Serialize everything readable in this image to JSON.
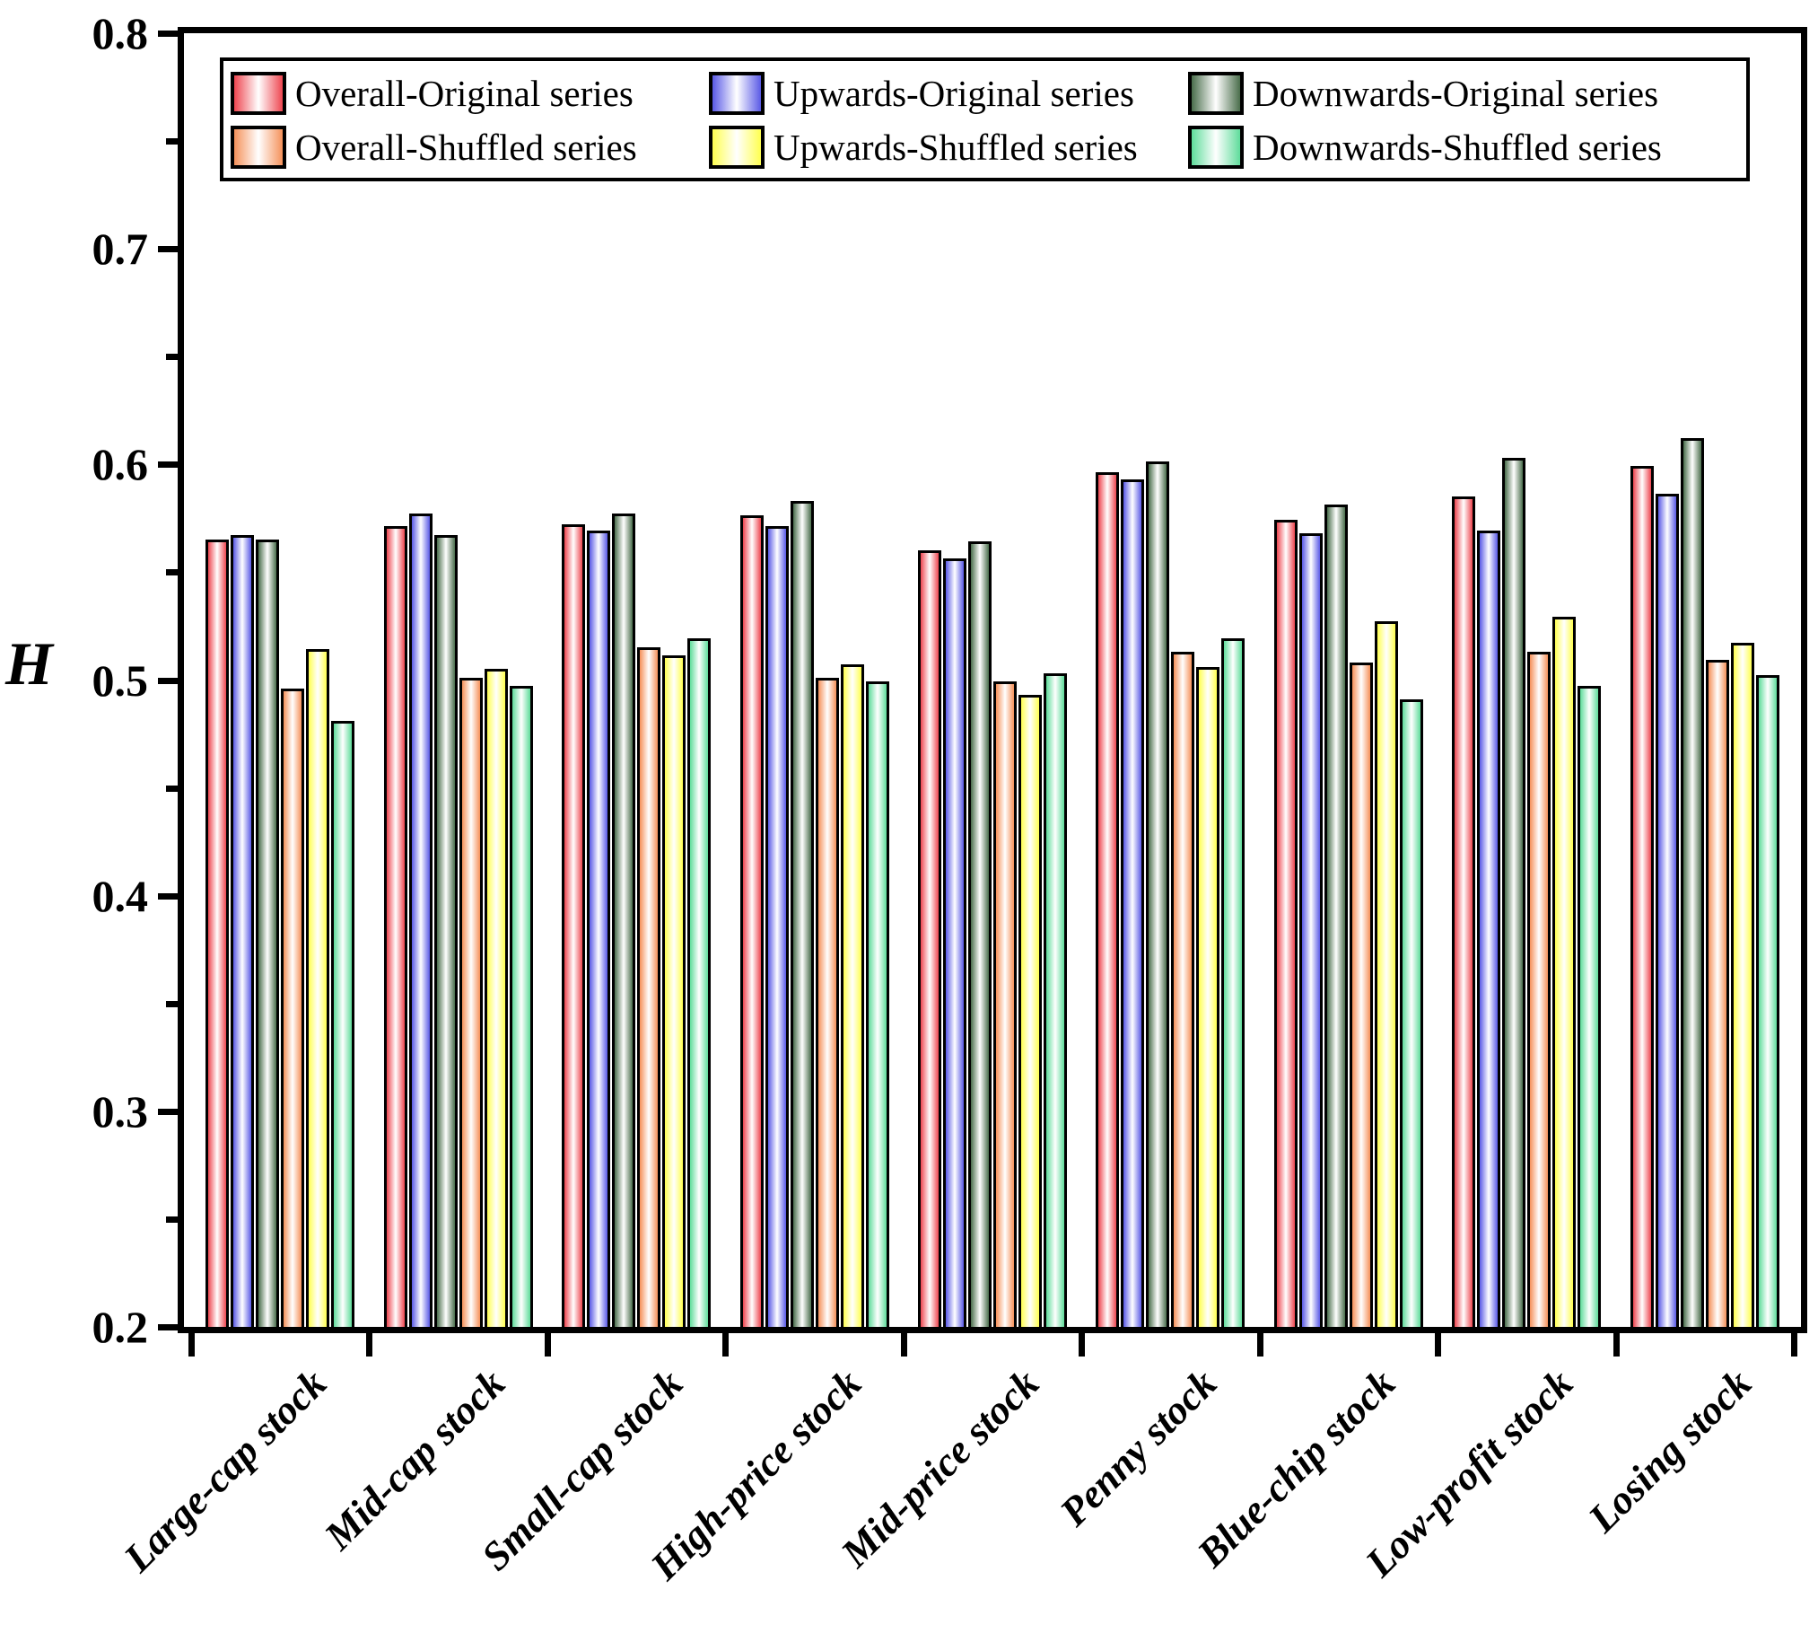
{
  "figure": {
    "background": "#ffffff",
    "axis_color": "#000000",
    "y_axis_title": "H"
  },
  "chart_data": {
    "type": "bar",
    "title": "",
    "xlabel": "",
    "ylabel": "H",
    "ylim": [
      0.2,
      0.8
    ],
    "ytick_labels": [
      "0.2",
      "0.3",
      "0.4",
      "0.5",
      "0.6",
      "0.7",
      "0.8"
    ],
    "yticks_major": [
      0.2,
      0.3,
      0.4,
      0.5,
      0.6,
      0.7,
      0.8
    ],
    "yticks_minor": [
      0.25,
      0.35,
      0.45,
      0.55,
      0.65,
      0.75
    ],
    "grid": false,
    "legend_position": "top-inside",
    "legend_rows": 2,
    "legend_columns": 3,
    "categories": [
      "Large-cap stock",
      "Mid-cap stock",
      "Small-cap stock",
      "High-price stock",
      "Mid-price stock",
      "Penny stock",
      "Blue-chip stock",
      "Low-profit stock",
      "Losing stock"
    ],
    "series": [
      {
        "name": "Overall-Original series",
        "color": "#ee4650",
        "values": [
          0.564,
          0.57,
          0.571,
          0.575,
          0.559,
          0.595,
          0.573,
          0.584,
          0.598
        ]
      },
      {
        "name": "Upwards-Original series",
        "color": "#5a5ae6",
        "values": [
          0.566,
          0.576,
          0.568,
          0.57,
          0.555,
          0.592,
          0.567,
          0.568,
          0.585
        ]
      },
      {
        "name": "Downwards-Original series",
        "color": "#4a6e4c",
        "values": [
          0.564,
          0.566,
          0.576,
          0.582,
          0.563,
          0.6,
          0.58,
          0.602,
          0.611
        ]
      },
      {
        "name": "Overall-Shuffled series",
        "color": "#f5915a",
        "values": [
          0.495,
          0.5,
          0.514,
          0.5,
          0.498,
          0.512,
          0.507,
          0.512,
          0.508
        ]
      },
      {
        "name": "Upwards-Shuffled series",
        "color": "#ffff50",
        "values": [
          0.513,
          0.504,
          0.51,
          0.506,
          0.492,
          0.505,
          0.526,
          0.528,
          0.516
        ]
      },
      {
        "name": "Downwards-Shuffled series",
        "color": "#5fdc9b",
        "values": [
          0.48,
          0.496,
          0.518,
          0.498,
          0.502,
          0.518,
          0.49,
          0.496,
          0.501
        ]
      }
    ]
  }
}
